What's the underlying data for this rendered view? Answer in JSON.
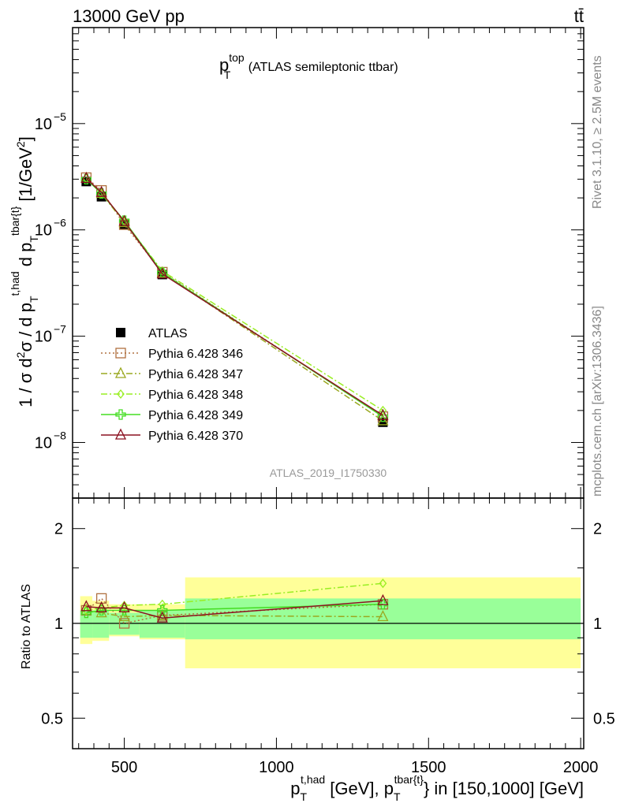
{
  "header": {
    "left": "13000 GeV pp",
    "right": "tt̄"
  },
  "title": {
    "main": "p",
    "sup": "top",
    "sub": "T",
    "rest": " (ATLAS semileptonic ttbar)"
  },
  "side_labels": {
    "rivet": "Rivet 3.1.10, ≥ 2.5M events",
    "mcplots": "mcplots.cern.ch [arXiv:1306.3436]"
  },
  "watermark": "ATLAS_2019_I1750330",
  "axes": {
    "y_main_label": "1 / σ d²σ / d p_T^{t,had} d p_T^{tbar{t}} [1/GeV²]",
    "y_ratio_label": "Ratio to ATLAS",
    "x_label": "p_T^{t,had} [GeV], p_T^{tbar{t}} in [150,1000] [GeV]",
    "x_ticks": [
      "500",
      "1000",
      "1500",
      "2000"
    ],
    "y_main_ticks": [
      "10^-8",
      "10^-7",
      "10^-6",
      "10^-5"
    ],
    "y_ratio_ticks": [
      "0.5",
      "1",
      "2"
    ]
  },
  "legend": [
    {
      "label": "ATLAS",
      "color": "#000000",
      "marker": "square-filled",
      "line": "none"
    },
    {
      "label": "Pythia 6.428 346",
      "color": "#b07040",
      "marker": "square-open",
      "line": "dotted"
    },
    {
      "label": "Pythia 6.428 347",
      "color": "#9aa820",
      "marker": "triangle-open",
      "line": "dashdot"
    },
    {
      "label": "Pythia 6.428 348",
      "color": "#99ee22",
      "marker": "diamond-open",
      "line": "dashdot"
    },
    {
      "label": "Pythia 6.428 349",
      "color": "#44dd22",
      "marker": "cross-open",
      "line": "solid"
    },
    {
      "label": "Pythia 6.428 370",
      "color": "#8b1020",
      "marker": "triangle-open",
      "line": "solid"
    }
  ],
  "chart_data": [
    {
      "type": "line",
      "panel": "main",
      "yscale": "log",
      "xlim": [
        330,
        2010
      ],
      "ylim": [
        3e-09,
        8e-05
      ],
      "x": [
        375,
        425,
        500,
        625,
        1350
      ],
      "series": [
        {
          "name": "ATLAS",
          "values": [
            2.85e-06,
            2.05e-06,
            1.13e-06,
            3.8e-07,
            1.55e-08
          ]
        },
        {
          "name": "Pythia 6.428 346",
          "values": [
            3.1e-06,
            2.35e-06,
            1.12e-06,
            4e-07,
            1.75e-08
          ]
        },
        {
          "name": "Pythia 6.428 347",
          "values": [
            3.05e-06,
            2.2e-06,
            1.17e-06,
            3.95e-07,
            1.6e-08
          ]
        },
        {
          "name": "Pythia 6.428 348",
          "values": [
            3.05e-06,
            2.2e-06,
            1.2e-06,
            4.1e-07,
            2e-08
          ]
        },
        {
          "name": "Pythia 6.428 349",
          "values": [
            3e-06,
            2.2e-06,
            1.22e-06,
            3.95e-07,
            1.75e-08
          ]
        },
        {
          "name": "Pythia 6.428 370",
          "values": [
            3.05e-06,
            2.25e-06,
            1.2e-06,
            3.85e-07,
            1.8e-08
          ]
        }
      ]
    },
    {
      "type": "line",
      "panel": "ratio",
      "yscale": "log",
      "xlim": [
        330,
        2010
      ],
      "ylim": [
        0.4,
        2.5
      ],
      "x": [
        375,
        425,
        500,
        625,
        1350
      ],
      "bands": {
        "edges": [
          355,
          395,
          450,
          550,
          700,
          2000
        ],
        "green_low": [
          0.9,
          0.9,
          0.92,
          0.9,
          0.89
        ],
        "green_high": [
          1.1,
          1.1,
          1.08,
          1.1,
          1.2
        ],
        "yellow_low": [
          0.86,
          0.88,
          0.91,
          0.89,
          0.72
        ],
        "yellow_high": [
          1.22,
          1.18,
          1.15,
          1.15,
          1.4
        ]
      },
      "series": [
        {
          "name": "Pythia 6.428 346",
          "values": [
            1.1,
            1.2,
            1.0,
            1.06,
            1.15
          ]
        },
        {
          "name": "Pythia 6.428 347",
          "values": [
            1.1,
            1.08,
            1.05,
            1.06,
            1.05
          ]
        },
        {
          "name": "Pythia 6.428 348",
          "values": [
            1.1,
            1.12,
            1.14,
            1.15,
            1.34
          ]
        },
        {
          "name": "Pythia 6.428 349",
          "values": [
            1.08,
            1.1,
            1.1,
            1.1,
            1.15
          ]
        },
        {
          "name": "Pythia 6.428 370",
          "values": [
            1.13,
            1.12,
            1.12,
            1.04,
            1.18
          ]
        }
      ]
    }
  ]
}
